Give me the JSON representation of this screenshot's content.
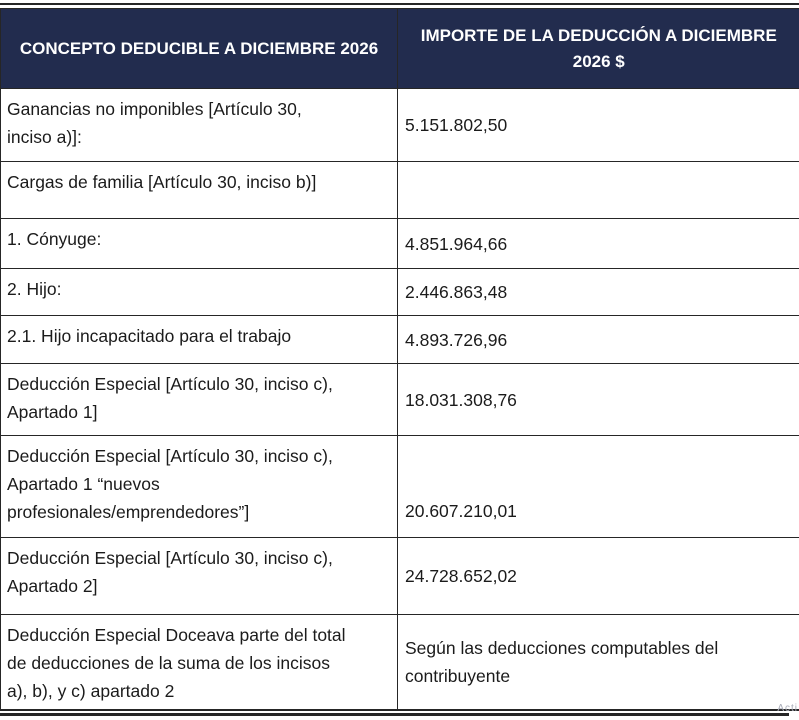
{
  "table": {
    "columns": [
      {
        "label": "CONCEPTO DEDUCIBLE A DICIEMBRE 2026"
      },
      {
        "label": "IMPORTE DE LA DEDUCCIÓN A DICIEMBRE\n2026 $"
      }
    ],
    "rows": [
      {
        "concept": "Ganancias no imponibles [Artículo 30,\ninciso a)]:",
        "amount": "5.151.802,50"
      },
      {
        "concept": "Cargas de familia [Artículo 30, inciso b)]",
        "amount": ""
      },
      {
        "concept": "1. Cónyuge:",
        "amount": "4.851.964,66"
      },
      {
        "concept": "2. Hijo:",
        "amount": "2.446.863,48"
      },
      {
        "concept": "2.1. Hijo incapacitado para el trabajo",
        "amount": "4.893.726,96"
      },
      {
        "concept": "Deducción Especial [Artículo 30, inciso c),\nApartado 1]",
        "amount": "18.031.308,76"
      },
      {
        "concept": "Deducción Especial [Artículo 30, inciso c),\nApartado 1 “nuevos\nprofesionales/emprendedores”]",
        "amount": "20.607.210,01"
      },
      {
        "concept": "Deducción Especial [Artículo 30, inciso c),\nApartado 2]",
        "amount": "24.728.652,02"
      },
      {
        "concept": "Deducción Especial Doceava parte del total\nde deducciones de la suma de los incisos\na), b), y c) apartado 2",
        "amount": "Según las deducciones computables del\ncontribuyente"
      }
    ]
  },
  "watermark": {
    "fragment": "Acti"
  },
  "colors": {
    "header_bg": "#222C4E",
    "header_text": "#FFFFFF",
    "border": "#262626",
    "body_text": "#1B1B1B"
  }
}
